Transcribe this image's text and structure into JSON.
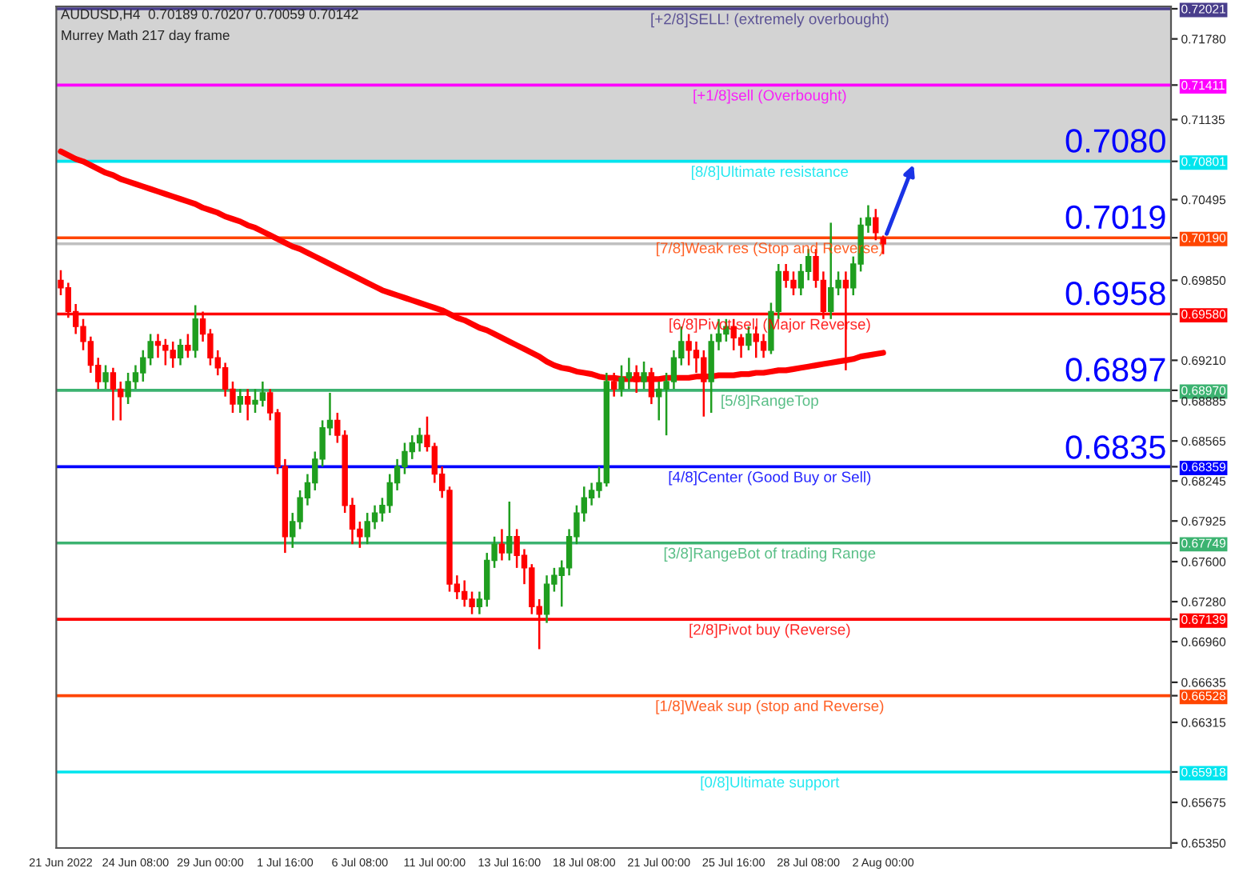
{
  "chart_data": {
    "type": "candlestick",
    "title": "AUDUSD,H4  0.70189 0.70207 0.70059 0.70142",
    "subtitle": "Murrey Math 217 day frame",
    "categories": [
      "21 Jun 2022",
      null,
      null,
      null,
      null,
      null,
      null,
      null,
      null,
      null,
      "24 Jun 08:00",
      null,
      null,
      null,
      null,
      null,
      null,
      null,
      null,
      null,
      "29 Jun 00:00",
      null,
      null,
      null,
      null,
      null,
      null,
      null,
      null,
      null,
      "1 Jul 16:00",
      null,
      null,
      null,
      null,
      null,
      null,
      null,
      null,
      null,
      "6 Jul 08:00",
      null,
      null,
      null,
      null,
      null,
      null,
      null,
      null,
      null,
      "11 Jul 00:00",
      null,
      null,
      null,
      null,
      null,
      null,
      null,
      null,
      null,
      "13 Jul 16:00",
      null,
      null,
      null,
      null,
      null,
      null,
      null,
      null,
      null,
      "18 Jul 08:00",
      null,
      null,
      null,
      null,
      null,
      null,
      null,
      null,
      null,
      "21 Jul 00:00",
      null,
      null,
      null,
      null,
      null,
      null,
      null,
      null,
      null,
      "25 Jul 16:00",
      null,
      null,
      null,
      null,
      null,
      null,
      null,
      null,
      null,
      "28 Jul 08:00",
      null,
      null,
      null,
      null,
      null,
      null,
      null,
      null,
      null,
      "2 Aug 00:00"
    ],
    "ohlc": [
      [
        0.6985,
        0.6993,
        0.6973,
        0.6979
      ],
      [
        0.6979,
        0.6983,
        0.6955,
        0.696
      ],
      [
        0.696,
        0.6966,
        0.6942,
        0.6948
      ],
      [
        0.6948,
        0.6954,
        0.6929,
        0.6936
      ],
      [
        0.6936,
        0.694,
        0.6911,
        0.6917
      ],
      [
        0.6917,
        0.6923,
        0.6898,
        0.6904
      ],
      [
        0.6904,
        0.6917,
        0.6898,
        0.6911
      ],
      [
        0.6911,
        0.6915,
        0.6873,
        0.6898
      ],
      [
        0.6898,
        0.6904,
        0.6873,
        0.6892
      ],
      [
        0.6892,
        0.6911,
        0.6886,
        0.6904
      ],
      [
        0.6904,
        0.6917,
        0.6898,
        0.6911
      ],
      [
        0.6911,
        0.6929,
        0.6904,
        0.6923
      ],
      [
        0.6923,
        0.6942,
        0.6917,
        0.6936
      ],
      [
        0.6936,
        0.6942,
        0.6923,
        0.6933
      ],
      [
        0.6933,
        0.6938,
        0.6917,
        0.6929
      ],
      [
        0.6929,
        0.6936,
        0.6915,
        0.6923
      ],
      [
        0.6923,
        0.6938,
        0.6917,
        0.6933
      ],
      [
        0.6933,
        0.6942,
        0.6923,
        0.6929
      ],
      [
        0.6929,
        0.6965,
        0.6923,
        0.6954
      ],
      [
        0.6954,
        0.696,
        0.6936,
        0.6942
      ],
      [
        0.6942,
        0.6946,
        0.6917,
        0.6923
      ],
      [
        0.6923,
        0.6929,
        0.6909,
        0.6915
      ],
      [
        0.6915,
        0.6919,
        0.6892,
        0.6898
      ],
      [
        0.6898,
        0.6904,
        0.6879,
        0.6886
      ],
      [
        0.6886,
        0.6898,
        0.6879,
        0.6892
      ],
      [
        0.6892,
        0.6898,
        0.6873,
        0.6886
      ],
      [
        0.6886,
        0.6898,
        0.6879,
        0.6889
      ],
      [
        0.6889,
        0.6904,
        0.6884,
        0.6895
      ],
      [
        0.6895,
        0.6898,
        0.6873,
        0.6879
      ],
      [
        0.6879,
        0.6882,
        0.683,
        0.6836
      ],
      [
        0.6836,
        0.6842,
        0.6767,
        0.678
      ],
      [
        0.678,
        0.6799,
        0.6771,
        0.6792
      ],
      [
        0.6792,
        0.6817,
        0.6786,
        0.6811
      ],
      [
        0.6811,
        0.683,
        0.6805,
        0.6823
      ],
      [
        0.6823,
        0.6848,
        0.6817,
        0.6842
      ],
      [
        0.6842,
        0.6873,
        0.6836,
        0.6867
      ],
      [
        0.6867,
        0.6895,
        0.6861,
        0.6873
      ],
      [
        0.6873,
        0.6879,
        0.6855,
        0.6861
      ],
      [
        0.6861,
        0.6865,
        0.6799,
        0.6805
      ],
      [
        0.6805,
        0.6811,
        0.6774,
        0.6786
      ],
      [
        0.6786,
        0.6792,
        0.6771,
        0.678
      ],
      [
        0.678,
        0.6799,
        0.6774,
        0.6792
      ],
      [
        0.6792,
        0.6805,
        0.6786,
        0.6799
      ],
      [
        0.6799,
        0.6811,
        0.6792,
        0.6805
      ],
      [
        0.6805,
        0.683,
        0.6799,
        0.6823
      ],
      [
        0.6823,
        0.6842,
        0.6817,
        0.6836
      ],
      [
        0.6836,
        0.6855,
        0.683,
        0.6848
      ],
      [
        0.6848,
        0.6861,
        0.6842,
        0.6855
      ],
      [
        0.6855,
        0.6867,
        0.6848,
        0.6861
      ],
      [
        0.6861,
        0.6876,
        0.6848,
        0.6852
      ],
      [
        0.6852,
        0.6855,
        0.6823,
        0.683
      ],
      [
        0.683,
        0.6836,
        0.6811,
        0.6817
      ],
      [
        0.6817,
        0.682,
        0.6736,
        0.6742
      ],
      [
        0.6742,
        0.6749,
        0.673,
        0.6736
      ],
      [
        0.6736,
        0.6745,
        0.6724,
        0.673
      ],
      [
        0.673,
        0.6736,
        0.6718,
        0.6724
      ],
      [
        0.6724,
        0.6736,
        0.6718,
        0.673
      ],
      [
        0.673,
        0.6767,
        0.6724,
        0.6761
      ],
      [
        0.6761,
        0.678,
        0.6755,
        0.6774
      ],
      [
        0.6774,
        0.6786,
        0.6761,
        0.6767
      ],
      [
        0.6767,
        0.6808,
        0.6761,
        0.678
      ],
      [
        0.678,
        0.6786,
        0.6755,
        0.6765
      ],
      [
        0.6765,
        0.677,
        0.6742,
        0.6755
      ],
      [
        0.6755,
        0.6758,
        0.6718,
        0.6724
      ],
      [
        0.6724,
        0.673,
        0.669,
        0.6718
      ],
      [
        0.6718,
        0.6749,
        0.6711,
        0.6742
      ],
      [
        0.6742,
        0.6755,
        0.6736,
        0.6749
      ],
      [
        0.6749,
        0.6761,
        0.6724,
        0.6755
      ],
      [
        0.6755,
        0.6786,
        0.6749,
        0.678
      ],
      [
        0.678,
        0.6805,
        0.6774,
        0.6799
      ],
      [
        0.6799,
        0.682,
        0.6792,
        0.6811
      ],
      [
        0.6811,
        0.6823,
        0.6805,
        0.6817
      ],
      [
        0.6817,
        0.6836,
        0.6811,
        0.6823
      ],
      [
        0.6823,
        0.6911,
        0.682,
        0.6904
      ],
      [
        0.6904,
        0.6911,
        0.6892,
        0.6898
      ],
      [
        0.6898,
        0.6917,
        0.6892,
        0.6907
      ],
      [
        0.6907,
        0.6923,
        0.6898,
        0.6911
      ],
      [
        0.6911,
        0.6917,
        0.6895,
        0.6904
      ],
      [
        0.6904,
        0.692,
        0.6898,
        0.6911
      ],
      [
        0.6911,
        0.6915,
        0.6886,
        0.6892
      ],
      [
        0.6892,
        0.6904,
        0.6873,
        0.6898
      ],
      [
        0.6898,
        0.6911,
        0.6861,
        0.6904
      ],
      [
        0.6904,
        0.6929,
        0.6898,
        0.6923
      ],
      [
        0.6923,
        0.6948,
        0.6917,
        0.6936
      ],
      [
        0.6936,
        0.6942,
        0.6917,
        0.6929
      ],
      [
        0.6929,
        0.6936,
        0.6911,
        0.6923
      ],
      [
        0.6923,
        0.6929,
        0.6876,
        0.6904
      ],
      [
        0.6904,
        0.6942,
        0.6879,
        0.6936
      ],
      [
        0.6936,
        0.6954,
        0.6929,
        0.6942
      ],
      [
        0.6942,
        0.6954,
        0.6936,
        0.6948
      ],
      [
        0.6948,
        0.6954,
        0.6929,
        0.6939
      ],
      [
        0.6939,
        0.6942,
        0.6923,
        0.6933
      ],
      [
        0.6933,
        0.6948,
        0.6929,
        0.6942
      ],
      [
        0.6942,
        0.6948,
        0.6923,
        0.6936
      ],
      [
        0.6936,
        0.6942,
        0.6923,
        0.6929
      ],
      [
        0.6929,
        0.6967,
        0.6926,
        0.696
      ],
      [
        0.696,
        0.6998,
        0.6954,
        0.6992
      ],
      [
        0.6992,
        0.6998,
        0.6979,
        0.6985
      ],
      [
        0.6985,
        0.6992,
        0.6973,
        0.6979
      ],
      [
        0.6979,
        0.6998,
        0.6973,
        0.6992
      ],
      [
        0.6992,
        0.701,
        0.6985,
        0.7004
      ],
      [
        0.7004,
        0.701,
        0.6979,
        0.6985
      ],
      [
        0.6985,
        0.6992,
        0.6954,
        0.696
      ],
      [
        0.696,
        0.7031,
        0.6954,
        0.6979
      ],
      [
        0.6979,
        0.6992,
        0.6973,
        0.6985
      ],
      [
        0.6985,
        0.6992,
        0.6913,
        0.6979
      ],
      [
        0.6979,
        0.7004,
        0.6973,
        0.6998
      ],
      [
        0.6998,
        0.7035,
        0.6992,
        0.7029
      ],
      [
        0.7029,
        0.7045,
        0.7023,
        0.7035
      ],
      [
        0.7035,
        0.7042,
        0.7017,
        0.7023
      ],
      [
        0.70189,
        0.70207,
        0.70059,
        0.70142
      ]
    ],
    "series": [
      {
        "type": "line",
        "color": "#ff0000",
        "values": [
          0.7088,
          0.7085,
          0.7082,
          0.708,
          0.7077,
          0.7074,
          0.7071,
          0.7069,
          0.7066,
          0.7064,
          0.7062,
          0.706,
          0.7058,
          0.7056,
          0.7054,
          0.7052,
          0.705,
          0.7048,
          0.7046,
          0.7043,
          0.7041,
          0.7039,
          0.7036,
          0.7034,
          0.7032,
          0.7029,
          0.7027,
          0.7024,
          0.7021,
          0.7018,
          0.7015,
          0.7012,
          0.701,
          0.7007,
          0.7004,
          0.7001,
          0.6998,
          0.6995,
          0.6992,
          0.6989,
          0.6986,
          0.6983,
          0.698,
          0.6977,
          0.6975,
          0.6973,
          0.6971,
          0.6969,
          0.6967,
          0.6965,
          0.6963,
          0.6961,
          0.6958,
          0.6955,
          0.6953,
          0.695,
          0.6947,
          0.6945,
          0.6942,
          0.6939,
          0.6936,
          0.6933,
          0.693,
          0.6927,
          0.6924,
          0.692,
          0.6917,
          0.6915,
          0.6914,
          0.6912,
          0.6911,
          0.691,
          0.6908,
          0.6907,
          0.6907,
          0.6906,
          0.6906,
          0.6906,
          0.6906,
          0.6906,
          0.6906,
          0.6907,
          0.6907,
          0.6907,
          0.6907,
          0.6908,
          0.6908,
          0.6908,
          0.6909,
          0.6909,
          0.6909,
          0.691,
          0.691,
          0.6911,
          0.6911,
          0.6912,
          0.6913,
          0.6913,
          0.6914,
          0.6915,
          0.6916,
          0.6917,
          0.6918,
          0.6919,
          0.692,
          0.6921,
          0.6922,
          0.6924,
          0.6925,
          0.6926,
          0.6927
        ]
      }
    ],
    "ylim": [
      0.6531,
      0.7204
    ],
    "yticks": [
      {
        "value": 0.72021,
        "label": "0.72021"
      },
      {
        "value": 0.7178,
        "label": "0.71780"
      },
      {
        "value": 0.71411,
        "label": "0.71411"
      },
      {
        "value": 0.71135,
        "label": "0.71135"
      },
      {
        "value": 0.70801,
        "label": "0.70801"
      },
      {
        "value": 0.70495,
        "label": "0.70495"
      },
      {
        "value": 0.7019,
        "label": "0.70190"
      },
      {
        "value": 0.6985,
        "label": "0.69850"
      },
      {
        "value": 0.6958,
        "label": "0.69580"
      },
      {
        "value": 0.6921,
        "label": "0.69210"
      },
      {
        "value": 0.6897,
        "label": "0.68970"
      },
      {
        "value": 0.68885,
        "label": "0.68885"
      },
      {
        "value": 0.68565,
        "label": "0.68565"
      },
      {
        "value": 0.68359,
        "label": "0.68359"
      },
      {
        "value": 0.68245,
        "label": "0.68245"
      },
      {
        "value": 0.67925,
        "label": "0.67925"
      },
      {
        "value": 0.67749,
        "label": "0.67749"
      },
      {
        "value": 0.676,
        "label": "0.67600"
      },
      {
        "value": 0.6728,
        "label": "0.67280"
      },
      {
        "value": 0.67139,
        "label": "0.67139"
      },
      {
        "value": 0.6696,
        "label": "0.66960"
      },
      {
        "value": 0.66635,
        "label": "0.66635"
      },
      {
        "value": 0.66528,
        "label": "0.66528"
      },
      {
        "value": 0.66315,
        "label": "0.66315"
      },
      {
        "value": 0.65918,
        "label": "0.65918"
      },
      {
        "value": 0.65675,
        "label": "0.65675"
      },
      {
        "value": 0.6535,
        "label": "0.65350"
      }
    ],
    "bands": [
      {
        "axis": "y",
        "from": 0.70801,
        "to": 0.7204,
        "color": "#d3d3d3"
      }
    ],
    "ref_lines": [
      {
        "axis": "y",
        "value": 0.72021,
        "label": "[+2/8]SELL! (extremely overbought)",
        "color": "#483d8b"
      },
      {
        "axis": "y",
        "value": 0.71411,
        "label": "[+1/8]sell (Overbought)",
        "color": "#ff00ff"
      },
      {
        "axis": "y",
        "value": 0.70801,
        "label": "[8/8]Ultimate resistance",
        "color": "#00e5ee"
      },
      {
        "axis": "y",
        "value": 0.7019,
        "label": "[7/8]Weak res (Stop and Reverse)",
        "color": "#ff4500"
      },
      {
        "axis": "y",
        "value": 0.70142,
        "color": "#c0c0c0"
      },
      {
        "axis": "y",
        "value": 0.6958,
        "label": "[6/8]Pivot sell (Major Reverse)",
        "color": "#ff0000"
      },
      {
        "axis": "y",
        "value": 0.6897,
        "label": "[5/8]RangeTop",
        "color": "#3cb371"
      },
      {
        "axis": "y",
        "value": 0.68359,
        "label": "[4/8]Center (Good Buy or Sell)",
        "color": "#0000ff"
      },
      {
        "axis": "y",
        "value": 0.67749,
        "label": "[3/8]RangeBot of trading Range",
        "color": "#3cb371"
      },
      {
        "axis": "y",
        "value": 0.67139,
        "label": "[2/8]Pivot buy (Reverse)",
        "color": "#ff0000"
      },
      {
        "axis": "y",
        "value": 0.66528,
        "label": "[1/8]Weak sup (stop and Reverse)",
        "color": "#ff4500"
      },
      {
        "axis": "y",
        "value": 0.65918,
        "label": "[0/8]Ultimate support",
        "color": "#00e5ee"
      }
    ],
    "annotations": [
      {
        "text": "0.7080",
        "y": 0.708
      },
      {
        "text": "0.7019",
        "y": 0.7019
      },
      {
        "text": "0.6958",
        "y": 0.6958
      },
      {
        "text": "0.6897",
        "y": 0.6897
      },
      {
        "text": "0.6835",
        "y": 0.6835
      }
    ],
    "grid": false,
    "legend": false
  }
}
